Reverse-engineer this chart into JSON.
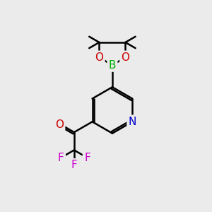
{
  "bg_color": "#ebebeb",
  "atom_colors": {
    "N": "#0000cc",
    "O": "#cc0000",
    "B": "#00aa00",
    "F": "#cc00cc"
  },
  "bond_color": "#000000",
  "bond_width": 1.8,
  "figsize": [
    3.0,
    3.0
  ],
  "dpi": 100
}
